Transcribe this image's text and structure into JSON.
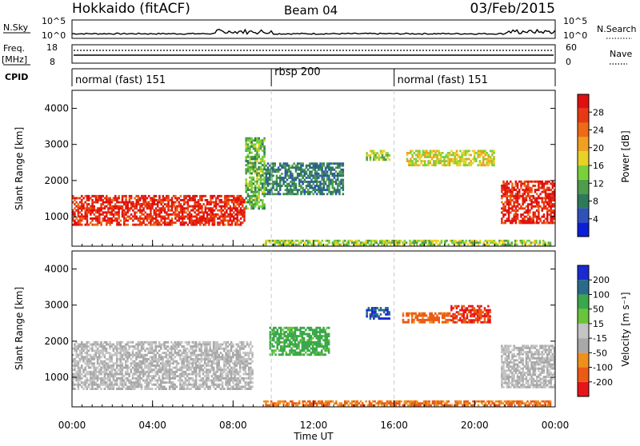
{
  "header": {
    "station": "Hokkaido (fitACF)",
    "beam": "Beam 04",
    "date": "03/Feb/2015"
  },
  "strip_noise": {
    "left_label": "N.Sky",
    "right_label": "N.Search",
    "left_ticks": [
      "10^5",
      "10^0"
    ],
    "right_ticks": [
      "10^5",
      "10^0"
    ]
  },
  "strip_freq": {
    "left_label_1": "Freq.",
    "left_label_2": "[MHz]",
    "right_label": "Nave",
    "left_ticks": [
      "18",
      "8"
    ],
    "right_ticks": [
      "60",
      "0"
    ]
  },
  "strip_cpid": {
    "label": "CPID",
    "segments": [
      {
        "label": "normal (fast) 151",
        "start_h": 0,
        "end_h": 9.9
      },
      {
        "label": "rbsp 200",
        "start_h": 9.9,
        "end_h": 16.0
      },
      {
        "label": "normal (fast) 151",
        "start_h": 16.0,
        "end_h": 24
      }
    ]
  },
  "panel_power": {
    "ylabel": "Slant Range [km]",
    "yticks": [
      "1000",
      "2000",
      "3000",
      "4000"
    ],
    "colorbar_label": "Power [dB]",
    "colorbar_ticks": [
      "28",
      "24",
      "20",
      "16",
      "12",
      "8",
      "4"
    ]
  },
  "panel_velocity": {
    "ylabel": "Slant Range [km]",
    "yticks": [
      "1000",
      "2000",
      "3000",
      "4000"
    ],
    "colorbar_label": "Velocity [m s⁻¹]",
    "colorbar_ticks": [
      "200",
      "100",
      "50",
      "15",
      "-15",
      "-50",
      "-100",
      "-200"
    ]
  },
  "xaxis": {
    "label": "Time UT",
    "ticks": [
      "00:00",
      "04:00",
      "08:00",
      "12:00",
      "16:00",
      "20:00",
      "00:00"
    ]
  },
  "colors": {
    "power_scale": [
      "#0a1fd6",
      "#2f52b8",
      "#2d7a5a",
      "#4d9d4a",
      "#7ad03a",
      "#e8d228",
      "#f0a020",
      "#ee6a14",
      "#e83a10",
      "#e01010"
    ],
    "velocity_scale": [
      "#e8141a",
      "#ec5a14",
      "#f0901c",
      "#a8a8a8",
      "#c4c4c4",
      "#6ac43a",
      "#3aa84a",
      "#2a6a8a",
      "#1a2ad0"
    ]
  },
  "chart_data": [
    {
      "type": "heatmap",
      "title": "Hokkaido (fitACF) Beam 04 03/Feb/2015",
      "quantity": "Power",
      "unit": "dB",
      "xlabel": "Time UT",
      "ylabel": "Slant Range [km]",
      "xlim_h": [
        0,
        24
      ],
      "ylim_km": [
        180,
        4500
      ],
      "clim": [
        0,
        30
      ],
      "regions": [
        {
          "t_start_h": 0.0,
          "t_end_h": 8.6,
          "r_min_km": 750,
          "r_max_km": 1600,
          "value_db": 27
        },
        {
          "t_start_h": 8.6,
          "t_end_h": 9.6,
          "r_min_km": 1200,
          "r_max_km": 3200,
          "value_db": 12
        },
        {
          "t_start_h": 9.6,
          "t_end_h": 13.5,
          "r_min_km": 1600,
          "r_max_km": 2500,
          "value_db": 8
        },
        {
          "t_start_h": 14.6,
          "t_end_h": 15.8,
          "r_min_km": 2550,
          "r_max_km": 2850,
          "value_db": 14
        },
        {
          "t_start_h": 16.6,
          "t_end_h": 21.0,
          "r_min_km": 2400,
          "r_max_km": 2850,
          "value_db": 16
        },
        {
          "t_start_h": 21.3,
          "t_end_h": 24.0,
          "r_min_km": 800,
          "r_max_km": 2000,
          "value_db": 27
        },
        {
          "t_start_h": 9.5,
          "t_end_h": 23.8,
          "r_min_km": 200,
          "r_max_km": 360,
          "value_db": 14
        }
      ]
    },
    {
      "type": "heatmap",
      "title": "Hokkaido (fitACF) Beam 04 03/Feb/2015",
      "quantity": "Velocity",
      "unit": "m s⁻¹",
      "xlabel": "Time UT",
      "ylabel": "Slant Range [km]",
      "xlim_h": [
        0,
        24
      ],
      "ylim_km": [
        180,
        4500
      ],
      "clim": [
        -200,
        200
      ],
      "regions": [
        {
          "t_start_h": 0.0,
          "t_end_h": 9.0,
          "r_min_km": 650,
          "r_max_km": 2000,
          "value_ms": 0
        },
        {
          "t_start_h": 9.8,
          "t_end_h": 12.8,
          "r_min_km": 1600,
          "r_max_km": 2400,
          "value_ms": 60
        },
        {
          "t_start_h": 14.6,
          "t_end_h": 15.8,
          "r_min_km": 2600,
          "r_max_km": 2950,
          "value_ms": 200
        },
        {
          "t_start_h": 16.4,
          "t_end_h": 18.8,
          "r_min_km": 2500,
          "r_max_km": 2800,
          "value_ms": -60
        },
        {
          "t_start_h": 18.8,
          "t_end_h": 20.8,
          "r_min_km": 2500,
          "r_max_km": 3000,
          "value_ms": -100
        },
        {
          "t_start_h": 21.3,
          "t_end_h": 24.0,
          "r_min_km": 700,
          "r_max_km": 1900,
          "value_ms": 0
        },
        {
          "t_start_h": 9.5,
          "t_end_h": 23.8,
          "r_min_km": 200,
          "r_max_km": 360,
          "value_ms": -50
        }
      ]
    }
  ]
}
